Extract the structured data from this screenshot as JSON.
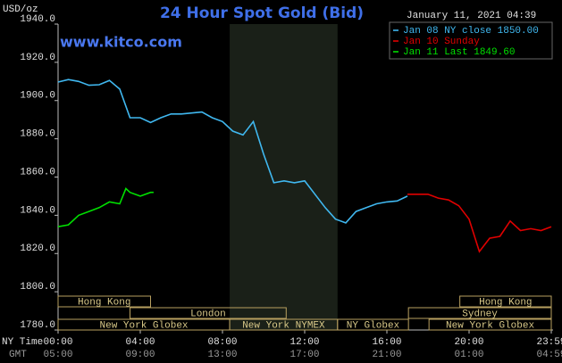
{
  "chart_data": {
    "type": "line",
    "title": "24 Hour Spot Gold (Bid)",
    "subtitle": "www.kitco.com",
    "timestamp": "January 11, 2021 04:39",
    "y_label": "USD/oz",
    "x_label": "NY Time",
    "x2_label": "GMT",
    "xlim": [
      0,
      24
    ],
    "xticks": [
      {
        "value": 0,
        "label": "00:00"
      },
      {
        "value": 4,
        "label": "04:00"
      },
      {
        "value": 8,
        "label": "08:00"
      },
      {
        "value": 12,
        "label": "12:00"
      },
      {
        "value": 16,
        "label": "16:00"
      },
      {
        "value": 20,
        "label": "20:00"
      },
      {
        "value": 24,
        "label": "23:59"
      }
    ],
    "x2ticks": [
      {
        "value": 0,
        "label": "05:00"
      },
      {
        "value": 4,
        "label": "09:00"
      },
      {
        "value": 8,
        "label": "13:00"
      },
      {
        "value": 12,
        "label": "17:00"
      },
      {
        "value": 16,
        "label": "21:00"
      },
      {
        "value": 20,
        "label": "01:00"
      },
      {
        "value": 24,
        "label": "04:59"
      }
    ],
    "ylim": [
      1780,
      1940
    ],
    "yticks": [
      {
        "value": 1780,
        "label": "1780.0"
      },
      {
        "value": 1800,
        "label": "1800.0"
      },
      {
        "value": 1820,
        "label": "1820.0"
      },
      {
        "value": 1840,
        "label": "1840.0"
      },
      {
        "value": 1860,
        "label": "1860.0"
      },
      {
        "value": 1880,
        "label": "1880.0"
      },
      {
        "value": 1900,
        "label": "1900.0"
      },
      {
        "value": 1920,
        "label": "1920.0"
      },
      {
        "value": 1940,
        "label": "1940.0"
      }
    ],
    "highlight": [
      8.35,
      13.6
    ],
    "series": [
      {
        "name": "Jan 08 NY close 1850.00",
        "color": "#40b8f0",
        "x": [
          0,
          0.5,
          1,
          1.5,
          2,
          2.5,
          3,
          3.5,
          4,
          4.5,
          5,
          5.5,
          6,
          6.5,
          7,
          7.5,
          8,
          8.5,
          9,
          9.5,
          10,
          10.5,
          11,
          11.5,
          12,
          12.5,
          13,
          13.5,
          14,
          14.5,
          15,
          15.5,
          16,
          16.5,
          17
        ],
        "values": [
          1909.7,
          1911,
          1910,
          1908,
          1908.3,
          1910.5,
          1906,
          1891,
          1891,
          1888.5,
          1891,
          1893,
          1893,
          1893.5,
          1894,
          1891,
          1889,
          1884,
          1882,
          1889,
          1872,
          1857,
          1858,
          1857,
          1858,
          1851,
          1844,
          1838,
          1836,
          1842,
          1844,
          1846,
          1847,
          1847.5,
          1850
        ]
      },
      {
        "name": "Jan 10 Sunday",
        "color": "#e00000",
        "x": [
          17,
          17.5,
          18,
          18.5,
          19,
          19.5,
          20,
          20.5,
          21,
          21.5,
          22,
          22.5,
          23,
          23.5,
          24
        ],
        "values": [
          1851,
          1851,
          1851,
          1849,
          1848,
          1845,
          1838,
          1821,
          1828,
          1829,
          1837,
          1832,
          1833,
          1832,
          1834
        ]
      },
      {
        "name": "Jan 11 Last 1849.60",
        "color": "#00e000",
        "x": [
          0,
          0.5,
          1,
          1.5,
          2,
          2.5,
          3,
          3.3,
          3.5,
          4,
          4.5,
          4.65
        ],
        "values": [
          1834,
          1835,
          1840,
          1842,
          1844,
          1847,
          1846,
          1854,
          1852,
          1850,
          1852,
          1852
        ]
      }
    ],
    "session_rows": [
      [
        {
          "name": "Hong Kong",
          "start": 0,
          "end": 4.5
        },
        {
          "name": "Hong Kong",
          "start": 19.55,
          "end": 24
        }
      ],
      [
        {
          "name": "London",
          "start": 3.5,
          "end": 11.1
        },
        {
          "name": "Sydney",
          "start": 17.05,
          "end": 24
        }
      ],
      [
        {
          "name": "New York Globex",
          "start": 0,
          "end": 8.35
        },
        {
          "name": "New York NYMEX",
          "start": 8.35,
          "end": 13.6
        },
        {
          "name": "NY Globex",
          "start": 13.6,
          "end": 17.05
        },
        {
          "name": "New York Globex",
          "start": 18.05,
          "end": 24
        }
      ]
    ]
  }
}
